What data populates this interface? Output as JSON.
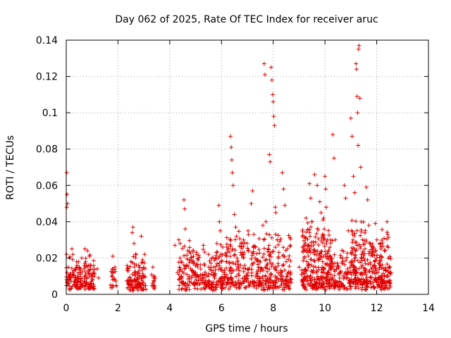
{
  "chart_data": {
    "type": "scatter",
    "title": "Day 062 of 2025, Rate Of TEC Index for receiver aruc",
    "xlabel": "GPS time / hours",
    "ylabel": "ROTI / TECUs",
    "xlim": [
      0,
      14
    ],
    "ylim": [
      0,
      0.14
    ],
    "xticks": [
      "0",
      "2",
      "4",
      "6",
      "8",
      "10",
      "12",
      "14"
    ],
    "yticks": [
      "0",
      "0.02",
      "0.04",
      "0.06",
      "0.08",
      "0.1",
      "0.12",
      "0.14"
    ],
    "grid": true,
    "marker": "plus",
    "color": "#e00000",
    "series": [
      {
        "name": "ROTI",
        "points": [
          [
            0.02,
            0.067
          ],
          [
            0.03,
            0.055
          ],
          [
            0.02,
            0.048
          ],
          [
            0.05,
            0.05
          ],
          [
            0.03,
            0.012
          ],
          [
            0.05,
            0.008
          ],
          [
            0.08,
            0.015
          ],
          [
            0.1,
            0.006
          ],
          [
            0.12,
            0.02
          ],
          [
            0.15,
            0.01
          ],
          [
            0.22,
            0.025
          ],
          [
            0.26,
            0.022
          ],
          [
            0.3,
            0.013
          ],
          [
            0.35,
            0.009
          ],
          [
            0.4,
            0.018
          ],
          [
            0.45,
            0.007
          ],
          [
            0.5,
            0.015
          ],
          [
            0.55,
            0.011
          ],
          [
            0.6,
            0.02
          ],
          [
            0.65,
            0.006
          ],
          [
            0.72,
            0.025
          ],
          [
            0.75,
            0.018
          ],
          [
            0.78,
            0.009
          ],
          [
            0.82,
            0.024
          ],
          [
            0.85,
            0.013
          ],
          [
            0.88,
            0.004
          ],
          [
            0.9,
            0.021
          ],
          [
            0.95,
            0.016
          ],
          [
            1.0,
            0.008
          ],
          [
            1.05,
            0.012
          ],
          [
            1.2,
            0.014
          ],
          [
            1.25,
            0.009
          ],
          [
            1.8,
            0.021
          ],
          [
            1.82,
            0.012
          ],
          [
            1.85,
            0.008
          ],
          [
            1.88,
            0.015
          ],
          [
            2.4,
            0.013
          ],
          [
            2.45,
            0.007
          ],
          [
            2.5,
            0.018
          ],
          [
            2.55,
            0.034
          ],
          [
            2.58,
            0.037
          ],
          [
            2.62,
            0.028
          ],
          [
            2.65,
            0.012
          ],
          [
            2.7,
            0.022
          ],
          [
            2.75,
            0.009
          ],
          [
            2.8,
            0.016
          ],
          [
            2.85,
            0.006
          ],
          [
            2.9,
            0.032
          ],
          [
            2.95,
            0.019
          ],
          [
            3.0,
            0.01
          ],
          [
            3.35,
            0.015
          ],
          [
            3.38,
            0.01
          ],
          [
            3.4,
            0.007
          ],
          [
            4.2,
            0.027
          ],
          [
            4.3,
            0.012
          ],
          [
            4.35,
            0.03
          ],
          [
            4.4,
            0.02
          ],
          [
            4.45,
            0.01
          ],
          [
            4.5,
            0.006
          ],
          [
            4.55,
            0.052
          ],
          [
            4.58,
            0.047
          ],
          [
            4.6,
            0.036
          ],
          [
            4.65,
            0.016
          ],
          [
            4.7,
            0.024
          ],
          [
            4.75,
            0.01
          ],
          [
            5.0,
            0.012
          ],
          [
            5.1,
            0.019
          ],
          [
            5.2,
            0.008
          ],
          [
            5.3,
            0.027
          ],
          [
            5.35,
            0.016
          ],
          [
            5.4,
            0.005
          ],
          [
            5.5,
            0.022
          ],
          [
            5.6,
            0.011
          ],
          [
            5.7,
            0.015
          ],
          [
            5.8,
            0.02
          ],
          [
            5.9,
            0.049
          ],
          [
            5.92,
            0.04
          ],
          [
            5.95,
            0.035
          ],
          [
            6.0,
            0.018
          ],
          [
            6.05,
            0.026
          ],
          [
            6.1,
            0.012
          ],
          [
            6.2,
            0.021
          ],
          [
            6.3,
            0.017
          ],
          [
            6.35,
            0.087
          ],
          [
            6.38,
            0.081
          ],
          [
            6.4,
            0.074
          ],
          [
            6.42,
            0.067
          ],
          [
            6.45,
            0.06
          ],
          [
            6.5,
            0.044
          ],
          [
            6.55,
            0.037
          ],
          [
            6.6,
            0.02
          ],
          [
            6.7,
            0.013
          ],
          [
            6.8,
            0.028
          ],
          [
            6.9,
            0.016
          ],
          [
            7.0,
            0.01
          ],
          [
            7.05,
            0.024
          ],
          [
            7.15,
            0.05
          ],
          [
            7.2,
            0.057
          ],
          [
            7.25,
            0.033
          ],
          [
            7.3,
            0.02
          ],
          [
            7.4,
            0.01
          ],
          [
            7.5,
            0.018
          ],
          [
            7.6,
            0.038
          ],
          [
            7.65,
            0.127
          ],
          [
            7.68,
            0.121
          ],
          [
            7.72,
            0.04
          ],
          [
            7.75,
            0.016
          ],
          [
            7.8,
            0.025
          ],
          [
            7.85,
            0.077
          ],
          [
            7.88,
            0.073
          ],
          [
            7.92,
            0.125
          ],
          [
            7.95,
            0.118
          ],
          [
            7.98,
            0.11
          ],
          [
            8.0,
            0.106
          ],
          [
            8.02,
            0.098
          ],
          [
            8.05,
            0.093
          ],
          [
            8.08,
            0.048
          ],
          [
            8.1,
            0.045
          ],
          [
            8.15,
            0.03
          ],
          [
            8.2,
            0.02
          ],
          [
            8.3,
            0.012
          ],
          [
            8.35,
            0.067
          ],
          [
            8.4,
            0.058
          ],
          [
            8.45,
            0.049
          ],
          [
            8.5,
            0.018
          ],
          [
            8.55,
            0.025
          ],
          [
            8.6,
            0.012
          ],
          [
            8.65,
            0.008
          ],
          [
            9.0,
            0.015
          ],
          [
            9.1,
            0.011
          ],
          [
            9.2,
            0.02
          ],
          [
            9.25,
            0.031
          ],
          [
            9.3,
            0.018
          ],
          [
            9.4,
            0.061
          ],
          [
            9.45,
            0.053
          ],
          [
            9.5,
            0.04
          ],
          [
            9.55,
            0.029
          ],
          [
            9.6,
            0.066
          ],
          [
            9.7,
            0.06
          ],
          [
            9.8,
            0.051
          ],
          [
            9.85,
            0.045
          ],
          [
            9.9,
            0.033
          ],
          [
            9.95,
            0.042
          ],
          [
            10.0,
            0.065
          ],
          [
            10.03,
            0.058
          ],
          [
            10.05,
            0.048
          ],
          [
            10.08,
            0.021
          ],
          [
            10.1,
            0.03
          ],
          [
            10.15,
            0.013
          ],
          [
            10.2,
            0.021
          ],
          [
            10.3,
            0.088
          ],
          [
            10.35,
            0.075
          ],
          [
            10.4,
            0.03
          ],
          [
            10.5,
            0.016
          ],
          [
            10.6,
            0.012
          ],
          [
            10.7,
            0.018
          ],
          [
            10.75,
            0.06
          ],
          [
            10.8,
            0.053
          ],
          [
            10.9,
            0.035
          ],
          [
            11.0,
            0.097
          ],
          [
            11.05,
            0.087
          ],
          [
            11.1,
            0.065
          ],
          [
            11.15,
            0.056
          ],
          [
            11.2,
            0.127
          ],
          [
            11.22,
            0.124
          ],
          [
            11.24,
            0.109
          ],
          [
            11.26,
            0.1
          ],
          [
            11.28,
            0.082
          ],
          [
            11.3,
            0.135
          ],
          [
            11.32,
            0.137
          ],
          [
            11.35,
            0.108
          ],
          [
            11.38,
            0.07
          ],
          [
            11.4,
            0.04
          ],
          [
            11.45,
            0.03
          ],
          [
            11.5,
            0.02
          ],
          [
            11.55,
            0.025
          ],
          [
            11.6,
            0.059
          ],
          [
            11.65,
            0.052
          ],
          [
            11.7,
            0.038
          ],
          [
            11.75,
            0.028
          ],
          [
            11.8,
            0.014
          ],
          [
            11.9,
            0.016
          ],
          [
            11.95,
            0.039
          ],
          [
            12.0,
            0.02
          ],
          [
            12.05,
            0.012
          ],
          [
            12.1,
            0.009
          ],
          [
            12.15,
            0.016
          ],
          [
            12.2,
            0.006
          ],
          [
            12.3,
            0.024
          ],
          [
            12.35,
            0.013
          ],
          [
            12.4,
            0.04
          ],
          [
            12.42,
            0.033
          ],
          [
            12.45,
            0.02
          ],
          [
            12.48,
            0.007
          ],
          [
            12.5,
            0.015
          ]
        ],
        "band": [
          [
            0.0,
            1.1,
            0.002,
            0.022,
            150
          ],
          [
            1.7,
            1.95,
            0.003,
            0.015,
            20
          ],
          [
            2.35,
            3.1,
            0.002,
            0.022,
            110
          ],
          [
            3.3,
            3.45,
            0.003,
            0.012,
            12
          ],
          [
            4.35,
            4.9,
            0.002,
            0.03,
            70
          ],
          [
            4.9,
            6.2,
            0.002,
            0.028,
            170
          ],
          [
            6.2,
            7.5,
            0.002,
            0.035,
            180
          ],
          [
            7.5,
            8.7,
            0.002,
            0.035,
            170
          ],
          [
            9.1,
            10.3,
            0.002,
            0.042,
            270
          ],
          [
            10.3,
            11.0,
            0.002,
            0.025,
            90
          ],
          [
            11.0,
            11.6,
            0.002,
            0.045,
            140
          ],
          [
            11.6,
            12.1,
            0.003,
            0.03,
            80
          ],
          [
            12.1,
            12.55,
            0.002,
            0.038,
            90
          ]
        ]
      }
    ]
  }
}
